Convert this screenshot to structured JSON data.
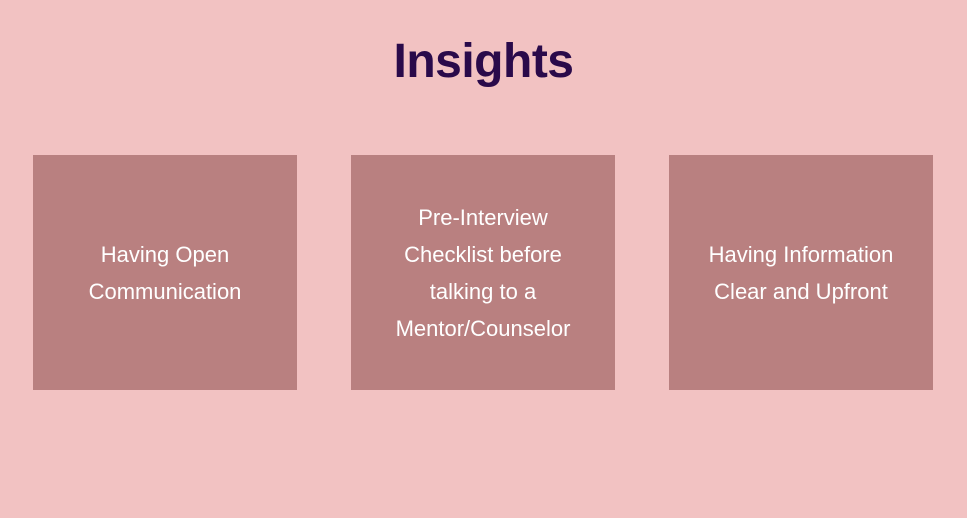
{
  "slide": {
    "title": "Insights",
    "cards": [
      {
        "text": "Having Open Communication"
      },
      {
        "text": "Pre-Interview Checklist before talking to a Mentor/Counselor"
      },
      {
        "text": "Having Information Clear and Upfront"
      }
    ],
    "colors": {
      "background": "#f2c2c2",
      "title": "#2a0a4a",
      "card": "#b98080",
      "card_text": "#ffffff"
    }
  }
}
